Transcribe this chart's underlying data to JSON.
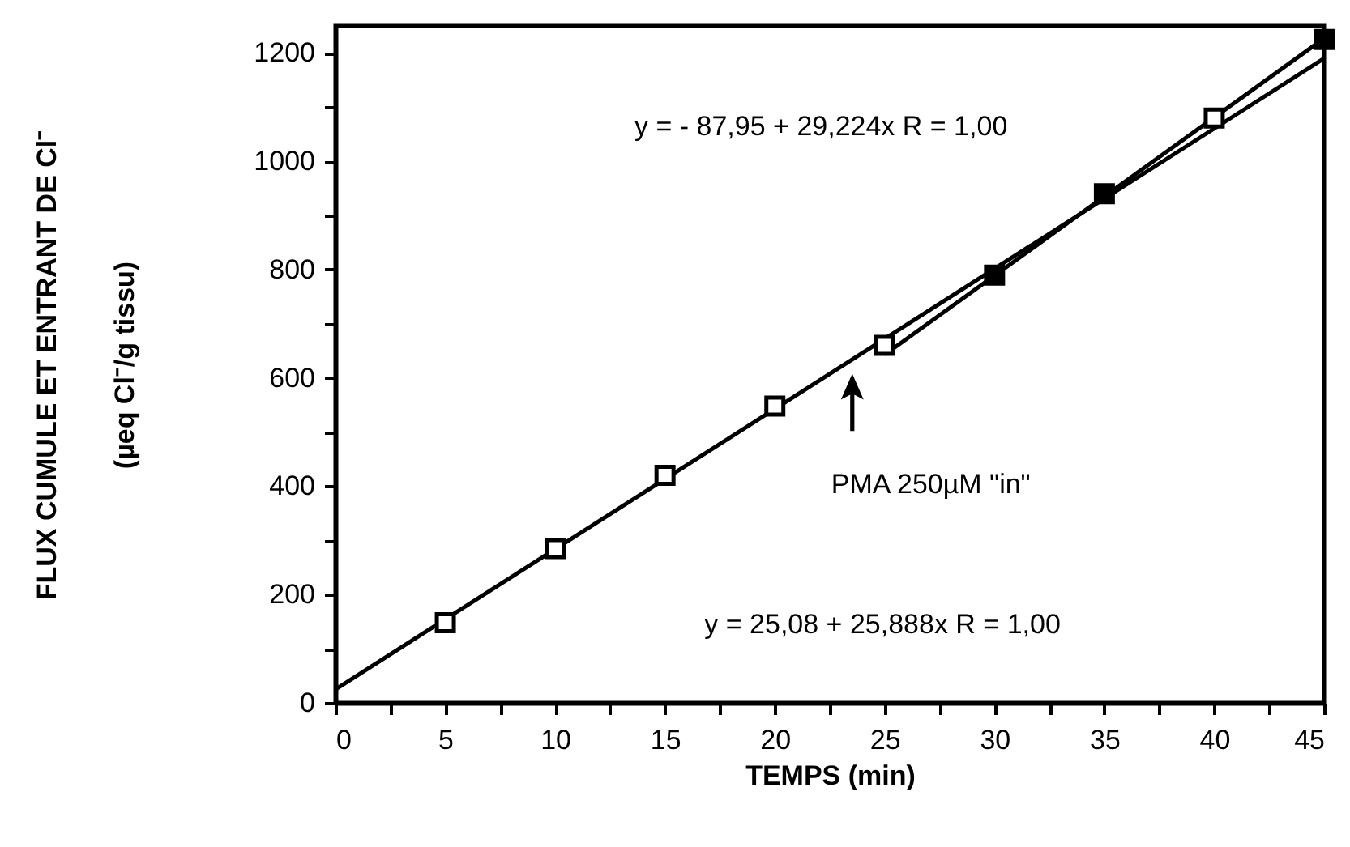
{
  "chart_data": {
    "type": "scatter",
    "xlabel": "TEMPS (min)",
    "ylabel": "FLUX CUMULE ET ENTRANT DE Cl⁻\n(µeq Cl⁻/g tissu)",
    "xlim": [
      0,
      45
    ],
    "ylim": [
      0,
      1250
    ],
    "xticks": [
      0,
      {
        "value": 2.5,
        "label": null
      },
      5,
      {
        "value": 7.5,
        "label": null
      },
      10,
      {
        "value": 12.5,
        "label": null
      },
      15,
      {
        "value": 17.5,
        "label": null
      },
      20,
      {
        "value": 22.5,
        "label": null
      },
      25,
      {
        "value": 27.5,
        "label": null
      },
      30,
      {
        "value": 32.5,
        "label": null
      },
      35,
      {
        "value": 37.5,
        "label": null
      },
      40,
      {
        "value": 42.5,
        "label": null
      },
      45
    ],
    "yticks": [
      0,
      {
        "value": 100,
        "label": null
      },
      200,
      {
        "value": 300,
        "label": null
      },
      400,
      {
        "value": 500,
        "label": null
      },
      600,
      {
        "value": 700,
        "label": null
      },
      800,
      {
        "value": 900,
        "label": null
      },
      1000,
      {
        "value": 1100,
        "label": null
      },
      1200
    ],
    "grid": false,
    "marker": "square",
    "series": [
      {
        "color": "#000000",
        "x": [
          5,
          10,
          15,
          20,
          25,
          30,
          35,
          40,
          45
        ],
        "values": [
          148,
          285,
          420,
          548,
          660,
          790,
          940,
          1080,
          1225
        ],
        "colors": [
          "#ffffff",
          "#ffffff",
          "#ffffff",
          "#ffffff",
          "#ffffff",
          "#000000",
          "#000000",
          "#ffffff",
          "#000000"
        ]
      },
      {
        "type": "line",
        "color": "#000000",
        "marker": "none",
        "line_style": "solid",
        "x": [
          0,
          45
        ],
        "values": [
          25,
          1190
        ]
      },
      {
        "type": "line",
        "color": "#000000",
        "marker": "none",
        "line_style": "solid",
        "x": [
          25,
          45
        ],
        "values": [
          643,
          1227
        ]
      }
    ],
    "annotations": [
      "y =  - 87,95 + 29,224x   R = 1,00",
      "y = 25,08 + 25,888x   R = 1,00",
      "PMA 250µM \"in\""
    ]
  }
}
